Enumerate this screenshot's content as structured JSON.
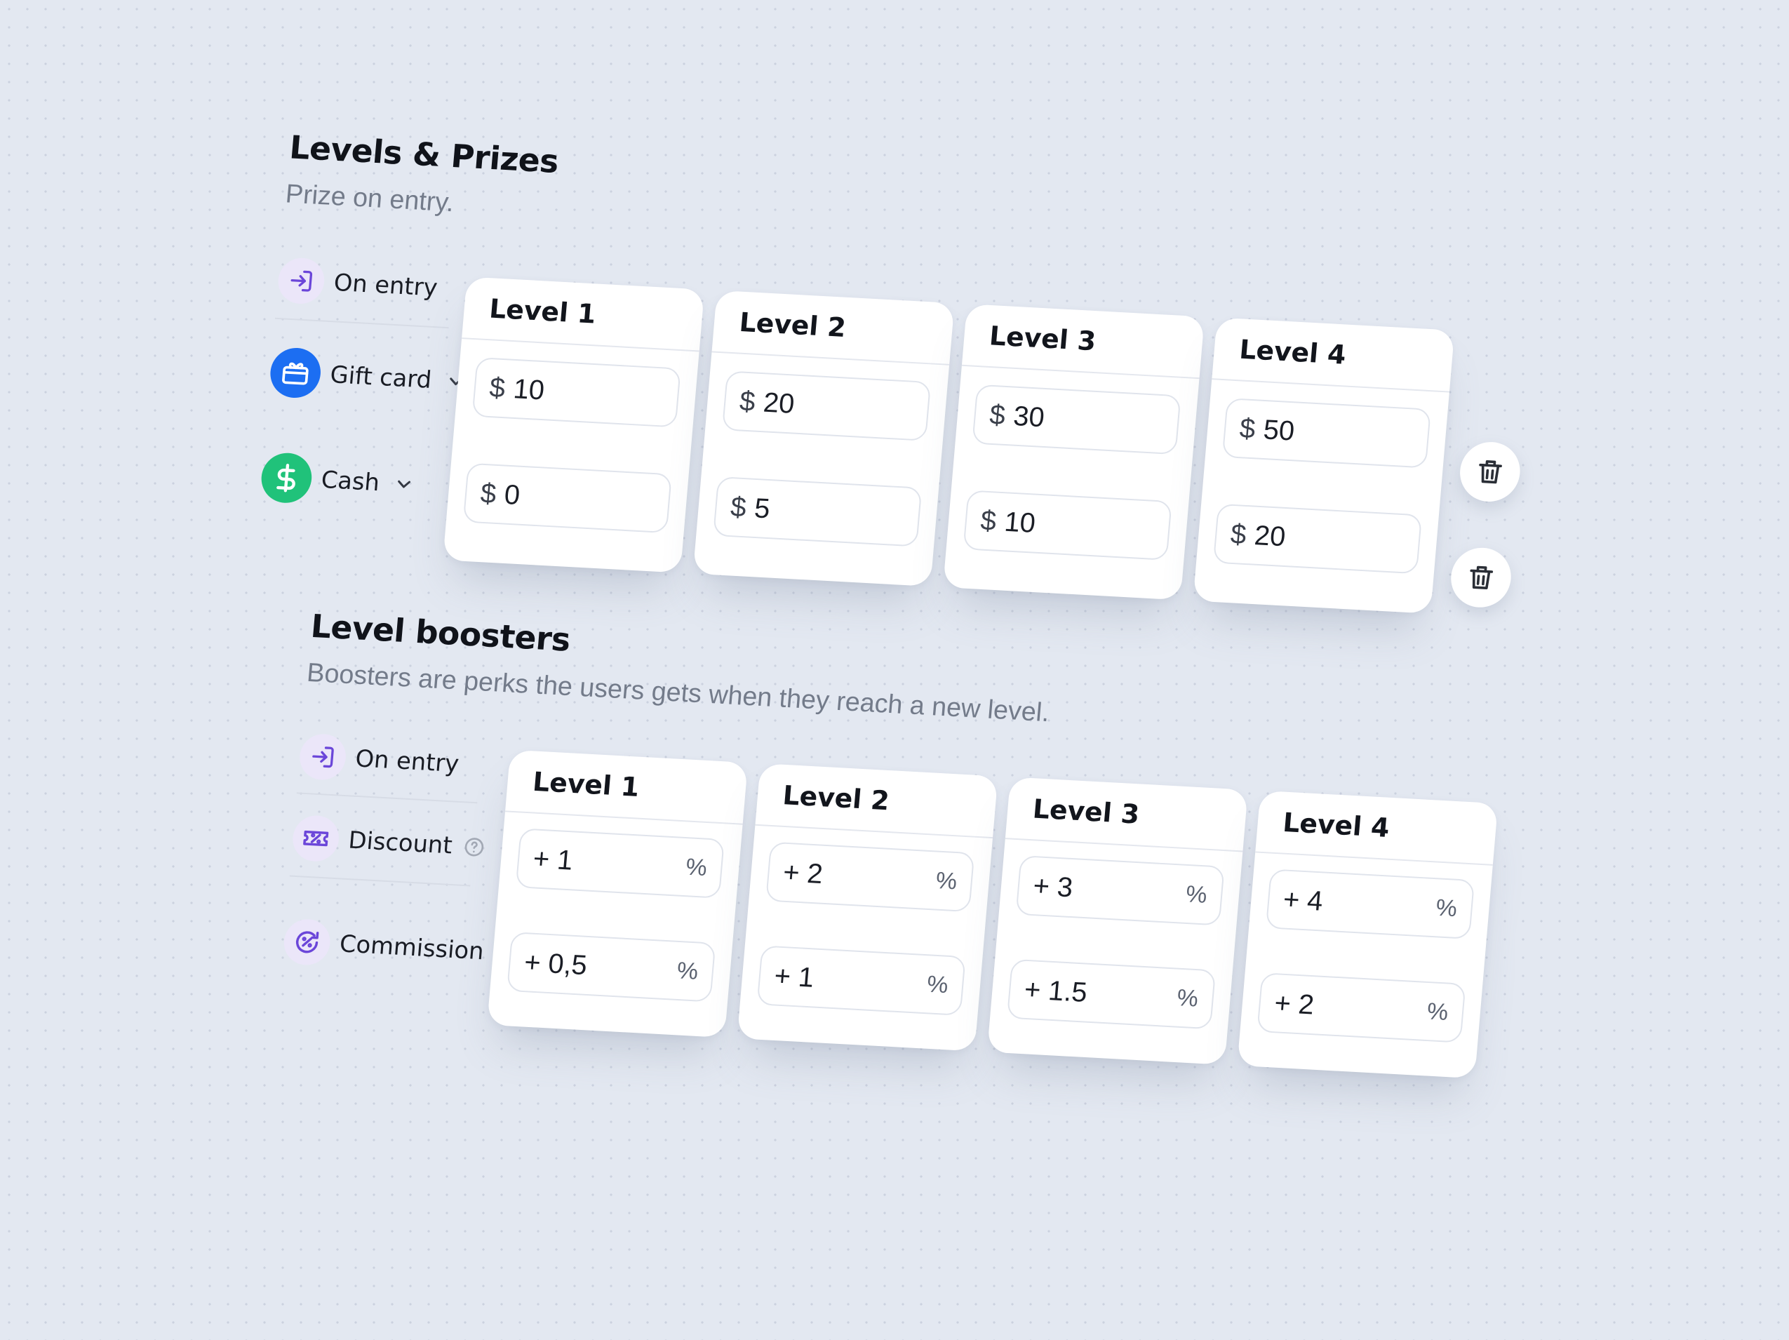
{
  "prizes": {
    "title": "Levels & Prizes",
    "subtitle": "Prize on entry.",
    "rows": [
      {
        "label": "On entry",
        "icon": "enter-icon"
      },
      {
        "label": "Gift card",
        "icon": "gift-card-icon",
        "accent": "#1c6ef2"
      },
      {
        "label": "Cash",
        "icon": "dollar-icon",
        "accent": "#20c27a"
      }
    ],
    "currency": "$",
    "levels": [
      {
        "name": "Level 1",
        "gift_card": "10",
        "cash": "0"
      },
      {
        "name": "Level 2",
        "gift_card": "20",
        "cash": "5"
      },
      {
        "name": "Level 3",
        "gift_card": "30",
        "cash": "10"
      },
      {
        "name": "Level 4",
        "gift_card": "50",
        "cash": "20"
      }
    ]
  },
  "boosters": {
    "title": "Level boosters",
    "subtitle": "Boosters are perks the users gets when they reach a new level.",
    "rows": [
      {
        "label": "On entry",
        "icon": "enter-icon"
      },
      {
        "label": "Discount",
        "icon": "ticket-icon"
      },
      {
        "label": "Commission",
        "icon": "commission-icon"
      }
    ],
    "unit": "%",
    "levels": [
      {
        "name": "Level 1",
        "discount": "+ 1",
        "commission": "+ 0,5"
      },
      {
        "name": "Level 2",
        "discount": "+ 2",
        "commission": "+ 1"
      },
      {
        "name": "Level 3",
        "discount": "+ 3",
        "commission": "+ 1.5"
      },
      {
        "name": "Level 4",
        "discount": "+ 4",
        "commission": "+ 2"
      }
    ]
  },
  "colors": {
    "accent_purple": "#6b46d9",
    "muted_text": "#737b8a"
  }
}
